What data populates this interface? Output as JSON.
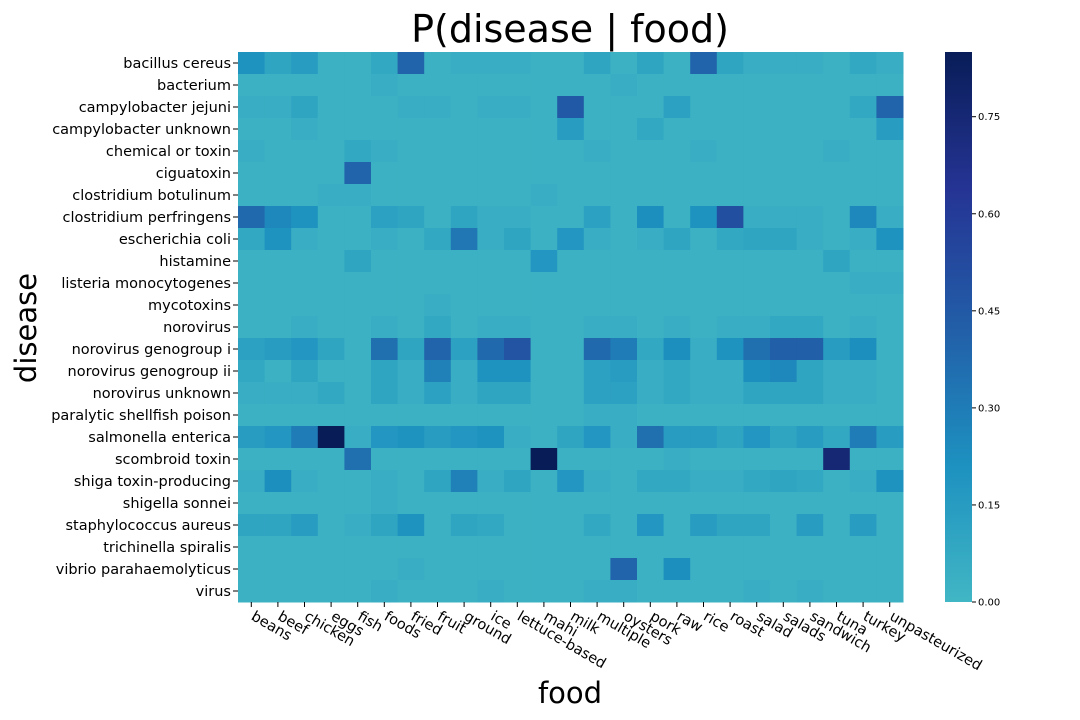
{
  "chart_data": {
    "type": "heatmap",
    "title": "P(disease | food)",
    "xlabel": "food",
    "ylabel": "disease",
    "x_categories": [
      "beans",
      "beef",
      "chicken",
      "eggs",
      "fish",
      "foods",
      "fried",
      "fruit",
      "ground",
      "ice",
      "lettuce-based",
      "mahi",
      "milk",
      "multiple",
      "oysters",
      "pork",
      "raw",
      "rice",
      "roast",
      "salad",
      "salads",
      "sandwich",
      "tuna",
      "turkey",
      "unpasteurized"
    ],
    "y_categories": [
      "bacillus cereus",
      "bacterium",
      "campylobacter jejuni",
      "campylobacter unknown",
      "chemical or toxin",
      "ciguatoxin",
      "clostridium botulinum",
      "clostridium perfringens",
      "escherichia coli",
      "histamine",
      "listeria monocytogenes",
      "mycotoxins",
      "norovirus",
      "norovirus genogroup i",
      "norovirus genogroup ii",
      "norovirus unknown",
      "paralytic shellfish poison",
      "salmonella enterica",
      "scombroid toxin",
      "shiga toxin-producing",
      "shigella sonnei",
      "staphylococcus aureus",
      "trichinella spiralis",
      "vibrio parahaemolyticus",
      "virus"
    ],
    "colorbar": {
      "range": [
        0,
        0.85
      ],
      "ticks": [
        0,
        0.15,
        0.3,
        0.45,
        0.6,
        0.75
      ],
      "tick_labels": [
        "0.00",
        "0.15",
        "0.30",
        "0.45",
        "0.60",
        "0.75"
      ],
      "colors": [
        "#41b6c4",
        "#1d91c0",
        "#225ea8",
        "#253494",
        "#081d58"
      ]
    },
    "values": [
      [
        0.2,
        0.1,
        0.15,
        0.03,
        0.03,
        0.08,
        0.4,
        0.03,
        0.05,
        0.05,
        0.05,
        0.03,
        0.03,
        0.1,
        0.03,
        0.1,
        0.03,
        0.4,
        0.1,
        0.05,
        0.05,
        0.05,
        0.03,
        0.08,
        0.05
      ],
      [
        0.03,
        0.03,
        0.03,
        0.03,
        0.03,
        0.05,
        0.03,
        0.03,
        0.03,
        0.03,
        0.03,
        0.03,
        0.03,
        0.03,
        0.05,
        0.03,
        0.03,
        0.03,
        0.03,
        0.03,
        0.03,
        0.03,
        0.03,
        0.03,
        0.03
      ],
      [
        0.05,
        0.05,
        0.1,
        0.03,
        0.03,
        0.03,
        0.05,
        0.05,
        0.03,
        0.05,
        0.05,
        0.03,
        0.45,
        0.03,
        0.03,
        0.03,
        0.12,
        0.03,
        0.03,
        0.03,
        0.03,
        0.03,
        0.03,
        0.08,
        0.4
      ],
      [
        0.03,
        0.03,
        0.05,
        0.03,
        0.03,
        0.03,
        0.03,
        0.03,
        0.03,
        0.03,
        0.03,
        0.03,
        0.15,
        0.03,
        0.03,
        0.08,
        0.03,
        0.03,
        0.03,
        0.03,
        0.03,
        0.03,
        0.03,
        0.03,
        0.15
      ],
      [
        0.05,
        0.03,
        0.03,
        0.03,
        0.08,
        0.05,
        0.03,
        0.03,
        0.03,
        0.03,
        0.03,
        0.03,
        0.03,
        0.05,
        0.03,
        0.03,
        0.03,
        0.05,
        0.03,
        0.03,
        0.03,
        0.03,
        0.05,
        0.03,
        0.03
      ],
      [
        0.03,
        0.03,
        0.03,
        0.03,
        0.4,
        0.03,
        0.03,
        0.03,
        0.03,
        0.03,
        0.03,
        0.03,
        0.03,
        0.03,
        0.03,
        0.03,
        0.03,
        0.03,
        0.03,
        0.03,
        0.03,
        0.03,
        0.03,
        0.03,
        0.03
      ],
      [
        0.03,
        0.03,
        0.03,
        0.05,
        0.05,
        0.03,
        0.03,
        0.03,
        0.03,
        0.03,
        0.03,
        0.05,
        0.03,
        0.03,
        0.03,
        0.03,
        0.03,
        0.03,
        0.03,
        0.03,
        0.03,
        0.03,
        0.03,
        0.03,
        0.03
      ],
      [
        0.38,
        0.25,
        0.2,
        0.03,
        0.03,
        0.12,
        0.1,
        0.03,
        0.1,
        0.05,
        0.05,
        0.03,
        0.03,
        0.12,
        0.03,
        0.22,
        0.03,
        0.2,
        0.5,
        0.05,
        0.05,
        0.05,
        0.03,
        0.25,
        0.05
      ],
      [
        0.08,
        0.2,
        0.05,
        0.03,
        0.03,
        0.05,
        0.03,
        0.08,
        0.32,
        0.05,
        0.1,
        0.03,
        0.18,
        0.05,
        0.03,
        0.05,
        0.1,
        0.03,
        0.08,
        0.1,
        0.1,
        0.05,
        0.03,
        0.05,
        0.2
      ],
      [
        0.03,
        0.03,
        0.03,
        0.03,
        0.1,
        0.03,
        0.03,
        0.03,
        0.03,
        0.03,
        0.03,
        0.18,
        0.03,
        0.03,
        0.03,
        0.03,
        0.03,
        0.03,
        0.03,
        0.03,
        0.03,
        0.03,
        0.1,
        0.03,
        0.03
      ],
      [
        0.03,
        0.03,
        0.03,
        0.03,
        0.03,
        0.03,
        0.03,
        0.03,
        0.03,
        0.03,
        0.03,
        0.03,
        0.03,
        0.03,
        0.03,
        0.03,
        0.03,
        0.03,
        0.03,
        0.03,
        0.03,
        0.03,
        0.03,
        0.05,
        0.05
      ],
      [
        0.03,
        0.03,
        0.03,
        0.03,
        0.03,
        0.03,
        0.03,
        0.05,
        0.03,
        0.03,
        0.03,
        0.03,
        0.03,
        0.03,
        0.03,
        0.03,
        0.03,
        0.03,
        0.03,
        0.03,
        0.03,
        0.03,
        0.03,
        0.03,
        0.03
      ],
      [
        0.03,
        0.03,
        0.05,
        0.03,
        0.03,
        0.05,
        0.03,
        0.08,
        0.03,
        0.05,
        0.05,
        0.03,
        0.03,
        0.05,
        0.05,
        0.03,
        0.05,
        0.03,
        0.05,
        0.05,
        0.08,
        0.08,
        0.03,
        0.05,
        0.03
      ],
      [
        0.12,
        0.15,
        0.18,
        0.1,
        0.03,
        0.35,
        0.1,
        0.4,
        0.12,
        0.38,
        0.48,
        0.03,
        0.03,
        0.38,
        0.3,
        0.08,
        0.22,
        0.05,
        0.2,
        0.35,
        0.42,
        0.42,
        0.15,
        0.22,
        0.03
      ],
      [
        0.08,
        0.03,
        0.1,
        0.03,
        0.03,
        0.1,
        0.05,
        0.28,
        0.05,
        0.2,
        0.2,
        0.03,
        0.03,
        0.12,
        0.15,
        0.05,
        0.08,
        0.05,
        0.05,
        0.22,
        0.25,
        0.1,
        0.05,
        0.05,
        0.03
      ],
      [
        0.05,
        0.05,
        0.05,
        0.08,
        0.03,
        0.1,
        0.05,
        0.12,
        0.05,
        0.1,
        0.1,
        0.03,
        0.03,
        0.12,
        0.12,
        0.05,
        0.08,
        0.05,
        0.05,
        0.1,
        0.1,
        0.1,
        0.05,
        0.05,
        0.03
      ],
      [
        0.03,
        0.03,
        0.03,
        0.03,
        0.03,
        0.03,
        0.03,
        0.03,
        0.03,
        0.03,
        0.03,
        0.03,
        0.03,
        0.05,
        0.05,
        0.03,
        0.03,
        0.03,
        0.03,
        0.03,
        0.03,
        0.03,
        0.03,
        0.03,
        0.03
      ],
      [
        0.15,
        0.18,
        0.3,
        0.85,
        0.05,
        0.18,
        0.2,
        0.15,
        0.18,
        0.2,
        0.05,
        0.03,
        0.1,
        0.18,
        0.05,
        0.35,
        0.15,
        0.15,
        0.1,
        0.18,
        0.1,
        0.15,
        0.08,
        0.3,
        0.15
      ],
      [
        0.03,
        0.03,
        0.03,
        0.03,
        0.35,
        0.03,
        0.03,
        0.03,
        0.03,
        0.03,
        0.03,
        0.85,
        0.03,
        0.03,
        0.03,
        0.03,
        0.05,
        0.03,
        0.03,
        0.03,
        0.03,
        0.03,
        0.75,
        0.03,
        0.03
      ],
      [
        0.05,
        0.22,
        0.05,
        0.03,
        0.03,
        0.05,
        0.03,
        0.1,
        0.28,
        0.05,
        0.1,
        0.03,
        0.18,
        0.05,
        0.03,
        0.08,
        0.08,
        0.05,
        0.05,
        0.08,
        0.1,
        0.08,
        0.03,
        0.05,
        0.2
      ],
      [
        0.03,
        0.03,
        0.03,
        0.03,
        0.03,
        0.05,
        0.03,
        0.03,
        0.03,
        0.03,
        0.03,
        0.03,
        0.03,
        0.03,
        0.03,
        0.03,
        0.03,
        0.03,
        0.03,
        0.03,
        0.03,
        0.03,
        0.03,
        0.03,
        0.03
      ],
      [
        0.1,
        0.1,
        0.15,
        0.03,
        0.05,
        0.1,
        0.2,
        0.03,
        0.1,
        0.08,
        0.03,
        0.03,
        0.03,
        0.08,
        0.03,
        0.18,
        0.03,
        0.15,
        0.1,
        0.1,
        0.03,
        0.15,
        0.03,
        0.15,
        0.03
      ],
      [
        0.03,
        0.03,
        0.03,
        0.03,
        0.03,
        0.03,
        0.03,
        0.03,
        0.03,
        0.03,
        0.03,
        0.03,
        0.03,
        0.03,
        0.03,
        0.03,
        0.03,
        0.03,
        0.03,
        0.03,
        0.03,
        0.03,
        0.03,
        0.03,
        0.03
      ],
      [
        0.03,
        0.03,
        0.03,
        0.03,
        0.03,
        0.03,
        0.05,
        0.03,
        0.03,
        0.03,
        0.03,
        0.03,
        0.03,
        0.03,
        0.4,
        0.03,
        0.22,
        0.03,
        0.03,
        0.03,
        0.03,
        0.03,
        0.03,
        0.03,
        0.03
      ],
      [
        0.03,
        0.03,
        0.03,
        0.03,
        0.03,
        0.05,
        0.03,
        0.03,
        0.03,
        0.05,
        0.03,
        0.03,
        0.03,
        0.05,
        0.05,
        0.03,
        0.03,
        0.03,
        0.03,
        0.05,
        0.03,
        0.05,
        0.03,
        0.03,
        0.03
      ]
    ]
  }
}
